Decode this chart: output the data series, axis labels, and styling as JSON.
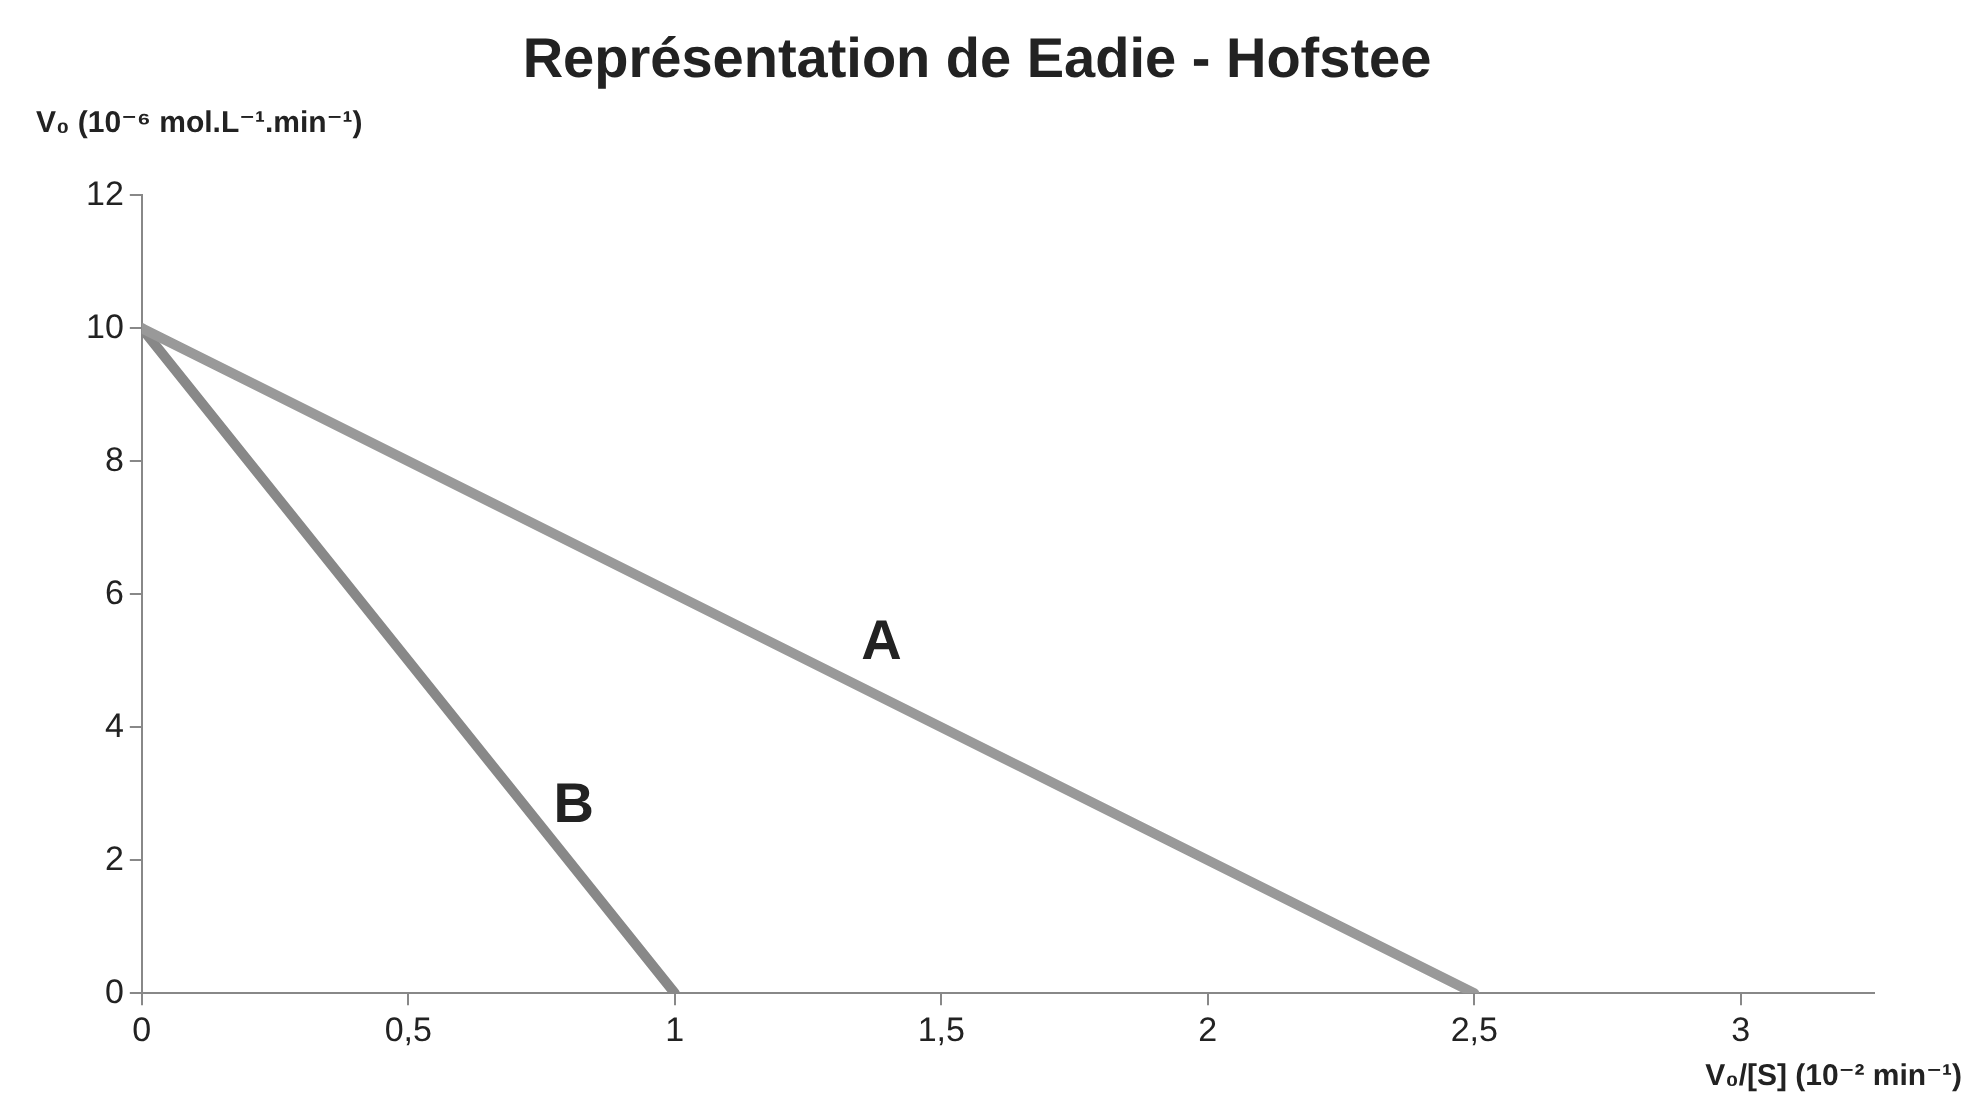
{
  "chart_data": {
    "type": "line",
    "title": "Représentation de Eadie - Hofstee",
    "xlabel": "V₀/[S] (10⁻² min⁻¹)",
    "ylabel": "V₀ (10⁻⁶ mol.L⁻¹.min⁻¹)",
    "series": [
      {
        "name": "A",
        "color": "#999999",
        "x": [
          0,
          2.5
        ],
        "values": [
          10,
          0
        ]
      },
      {
        "name": "B",
        "color": "#888888",
        "x": [
          0,
          1
        ],
        "values": [
          10,
          0
        ]
      }
    ],
    "xlim": [
      0,
      3.25
    ],
    "xticks": [
      0,
      {
        "value": 0.5,
        "label": "0,5"
      },
      1,
      {
        "value": 1.5,
        "label": "1,5"
      },
      2,
      {
        "value": 2.5,
        "label": "2,5"
      },
      3
    ],
    "ylim": [
      0,
      12
    ],
    "yticks": [
      0,
      2,
      4,
      6,
      8,
      10,
      12
    ],
    "grid": false,
    "legend": false,
    "marker": "none",
    "line_style": "solid"
  }
}
